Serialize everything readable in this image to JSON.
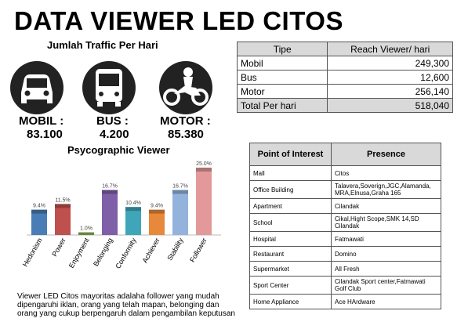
{
  "header": {
    "title": "DATA VIEWER LED CITOS"
  },
  "traffic": {
    "title": "Jumlah Traffic Per Hari",
    "items": [
      {
        "label": "MOBIL :",
        "value": "83.100"
      },
      {
        "label": "BUS :",
        "value": "4.200"
      },
      {
        "label": "MOTOR :",
        "value": "85.380"
      }
    ]
  },
  "reach_table": {
    "headers": [
      "Tipe",
      "Reach Viewer/ hari"
    ],
    "rows": [
      [
        "Mobil",
        "249,300"
      ],
      [
        "Bus",
        "12,600"
      ],
      [
        "Motor",
        "256,140"
      ],
      [
        "Total Per hari",
        "518,040"
      ]
    ]
  },
  "chart_data": {
    "type": "bar",
    "title": "Psycographic Viewer",
    "categories": [
      "Hedonism",
      "Power",
      "Enjoyment",
      "Belonging",
      "Conformity",
      "Achiever",
      "Stability",
      "Follower"
    ],
    "values": [
      9.4,
      11.5,
      1.0,
      16.7,
      10.4,
      9.4,
      16.7,
      25.0
    ],
    "value_labels": [
      "9.4%",
      "11.5%",
      "1.0%",
      "16.7%",
      "10.4%",
      "9.4%",
      "16.7%",
      "25.0%"
    ],
    "colors": [
      "#4a7db5",
      "#c0504d",
      "#8fb34f",
      "#7e5fa8",
      "#3ea6b8",
      "#e8883a",
      "#93b3dd",
      "#e3999a"
    ]
  },
  "poi_table": {
    "headers": [
      "Point of Interest",
      "Presence"
    ],
    "rows": [
      [
        "Mall",
        "Citos"
      ],
      [
        "Office Building",
        "Talavera,Soverign,JGC,Alamanda, MRA,Elnusa,Graha 165"
      ],
      [
        "Apartment",
        "Cilandak"
      ],
      [
        "School",
        "Cikal,Hight Scope,SMK 14,SD Cilandak"
      ],
      [
        "Hospital",
        "Fatmawati"
      ],
      [
        "Restaurant",
        "Domino"
      ],
      [
        "Supermarket",
        "All Fresh"
      ],
      [
        "Sport Center",
        "Cilandak Sport center,Fatmawati Golf Club"
      ],
      [
        "Home Appliance",
        "Ace HArdware"
      ]
    ]
  },
  "description": "Viewer LED Citos mayoritas adalaha follower yang mudah dipengaruhi iklan, orang yang telah mapan, belonging dan orang yang cukup berpengaruh dalam pengambilan keputusan"
}
